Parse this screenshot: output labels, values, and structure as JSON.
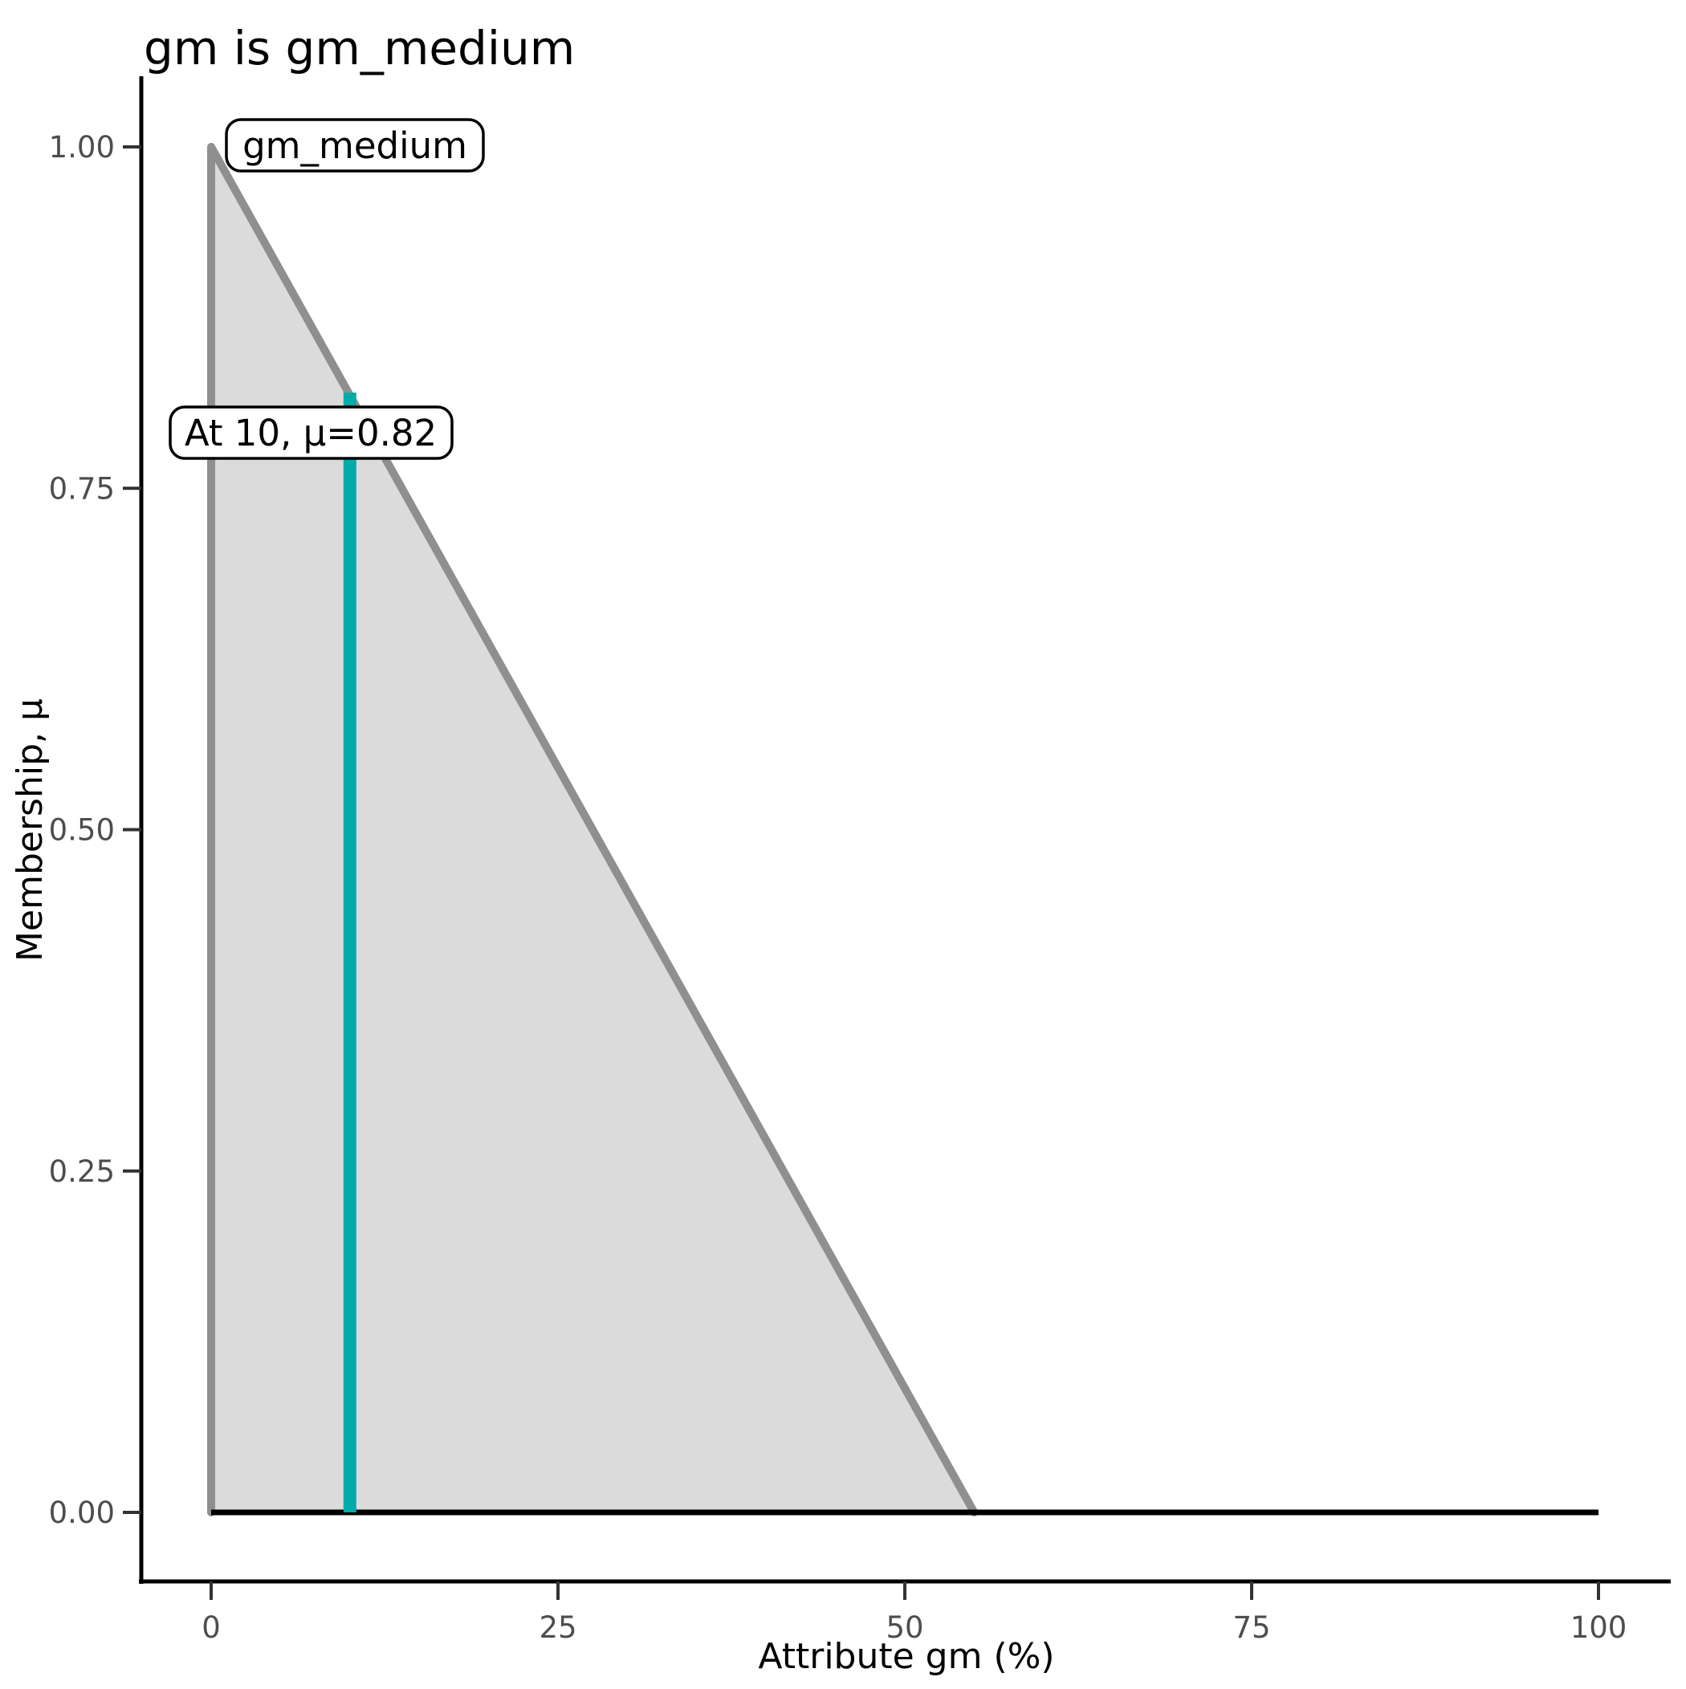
{
  "chart_data": {
    "type": "area",
    "title": "gm is gm_medium",
    "xlabel": "Attribute gm (%)",
    "ylabel": "Membership, μ",
    "xlim": [
      0,
      100
    ],
    "ylim": [
      0,
      1
    ],
    "grid": false,
    "legend": "none",
    "x_ticks": [
      0,
      25,
      50,
      75,
      100
    ],
    "x_tick_labels": [
      "0",
      "25",
      "50",
      "75",
      "100"
    ],
    "y_ticks": [
      0,
      0.25,
      0.5,
      0.75,
      1.0
    ],
    "y_tick_labels": [
      "0.00",
      "0.25",
      "0.50",
      "0.75",
      "1.00"
    ],
    "series": [
      {
        "name": "gm_medium membership function",
        "kind": "filled-curve",
        "points": [
          [
            0,
            0
          ],
          [
            0,
            1
          ],
          [
            55,
            0
          ]
        ],
        "fill_color": "#dbdbdb",
        "stroke_color": "#8f8f8f"
      },
      {
        "name": "zero membership baseline",
        "kind": "line",
        "points": [
          [
            0,
            0
          ],
          [
            100,
            0
          ]
        ],
        "stroke_color": "#000000"
      },
      {
        "name": "query value marker",
        "kind": "vline",
        "x": 10,
        "y0": 0,
        "y1": 0.82,
        "stroke_color": "#00aba8"
      }
    ],
    "annotations": [
      {
        "label": "gm_medium",
        "anchor_x": 0,
        "anchor_y": 1.0
      },
      {
        "label": "At 10, μ=0.82",
        "anchor_x": 10,
        "anchor_y": 0.82
      }
    ]
  },
  "colors": {
    "accent_teal": "#00aba8",
    "curve_gray": "#8f8f8f",
    "area_fill": "#dbdbdb",
    "tick_text": "#4d4d4d"
  }
}
